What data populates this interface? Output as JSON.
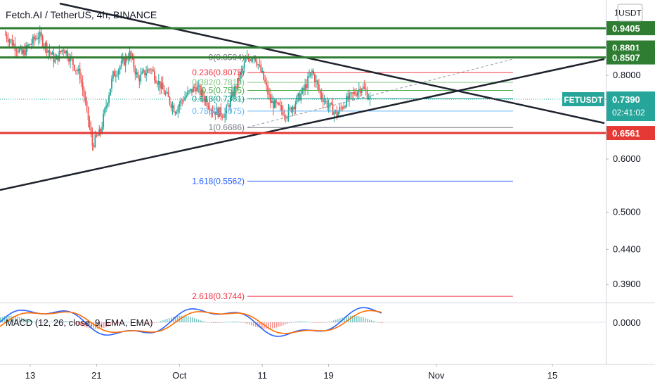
{
  "header": {
    "title": "Fetch.AI / TetherUS, 4h, BINANCE",
    "currency_button": "USDT",
    "top_axis_stub": "1"
  },
  "price_axis": {
    "ticks": [
      {
        "price": 0.8,
        "label": "0.8000"
      },
      {
        "price": 0.6,
        "label": "0.6000"
      },
      {
        "price": 0.5,
        "label": "0.5000"
      },
      {
        "price": 0.44,
        "label": "0.4400"
      },
      {
        "price": 0.39,
        "label": "0.3900"
      }
    ],
    "scale": "log"
  },
  "horizontal_levels": [
    {
      "price": 0.9405,
      "label": "0.9405",
      "color": "#2e7d32"
    },
    {
      "price": 0.8801,
      "label": "0.8801",
      "color": "#2e7d32"
    },
    {
      "price": 0.8507,
      "label": "0.8507",
      "color": "#2e7d32"
    },
    {
      "price": 0.6561,
      "label": "0.6561",
      "color": "#e53935"
    }
  ],
  "current_price": {
    "symbol": "FETUSDT",
    "price": 0.739,
    "label": "0.7390",
    "countdown": "02:41:02",
    "color": "#26a69a"
  },
  "fibonacci": {
    "levels": [
      {
        "ratio": "0",
        "label": "0(0.8504)",
        "price": 0.8504,
        "color": "#787b86"
      },
      {
        "ratio": "0.236",
        "label": "0.236(0.8075)",
        "price": 0.8075,
        "color": "#f23645"
      },
      {
        "ratio": "0.382",
        "label": "0.382(0.7810)",
        "price": 0.781,
        "color": "#81c784"
      },
      {
        "ratio": "0.5",
        "label": "0.5(0.7595)",
        "price": 0.7595,
        "color": "#4caf50"
      },
      {
        "ratio": "0.618",
        "label": "0.618(0.7381)",
        "price": 0.7381,
        "color": "#089981"
      },
      {
        "ratio": "0.786",
        "label": "0.786(0.7075)",
        "price": 0.7075,
        "color": "#64b5f6"
      },
      {
        "ratio": "1",
        "label": "1(0.6686)",
        "price": 0.6686,
        "color": "#787b86"
      },
      {
        "ratio": "1.618",
        "label": "1.618(0.5562)",
        "price": 0.5562,
        "color": "#2962ff"
      },
      {
        "ratio": "2.618",
        "label": "2.618(0.3744)",
        "price": 0.3744,
        "color": "#f23645"
      }
    ]
  },
  "macd": {
    "label": "MACD (12, 26, close, 9, EMA, EMA)",
    "axis_label": "0.0000"
  },
  "time_axis": {
    "labels": [
      {
        "label": "13",
        "day": 13
      },
      {
        "label": "21",
        "day": 21
      },
      {
        "label": "Oct",
        "day": 31
      },
      {
        "label": "11",
        "day": 41
      },
      {
        "label": "19",
        "day": 49
      },
      {
        "label": "Nov",
        "day": 62
      },
      {
        "label": "15",
        "day": 76
      }
    ]
  },
  "candles": {
    "start_day": 10,
    "end_day": 54,
    "up_color": "#26a69a",
    "down_color": "#ef5350"
  },
  "colors": {
    "trendline": "#1e222d",
    "grid_axis_text": "#131722"
  }
}
